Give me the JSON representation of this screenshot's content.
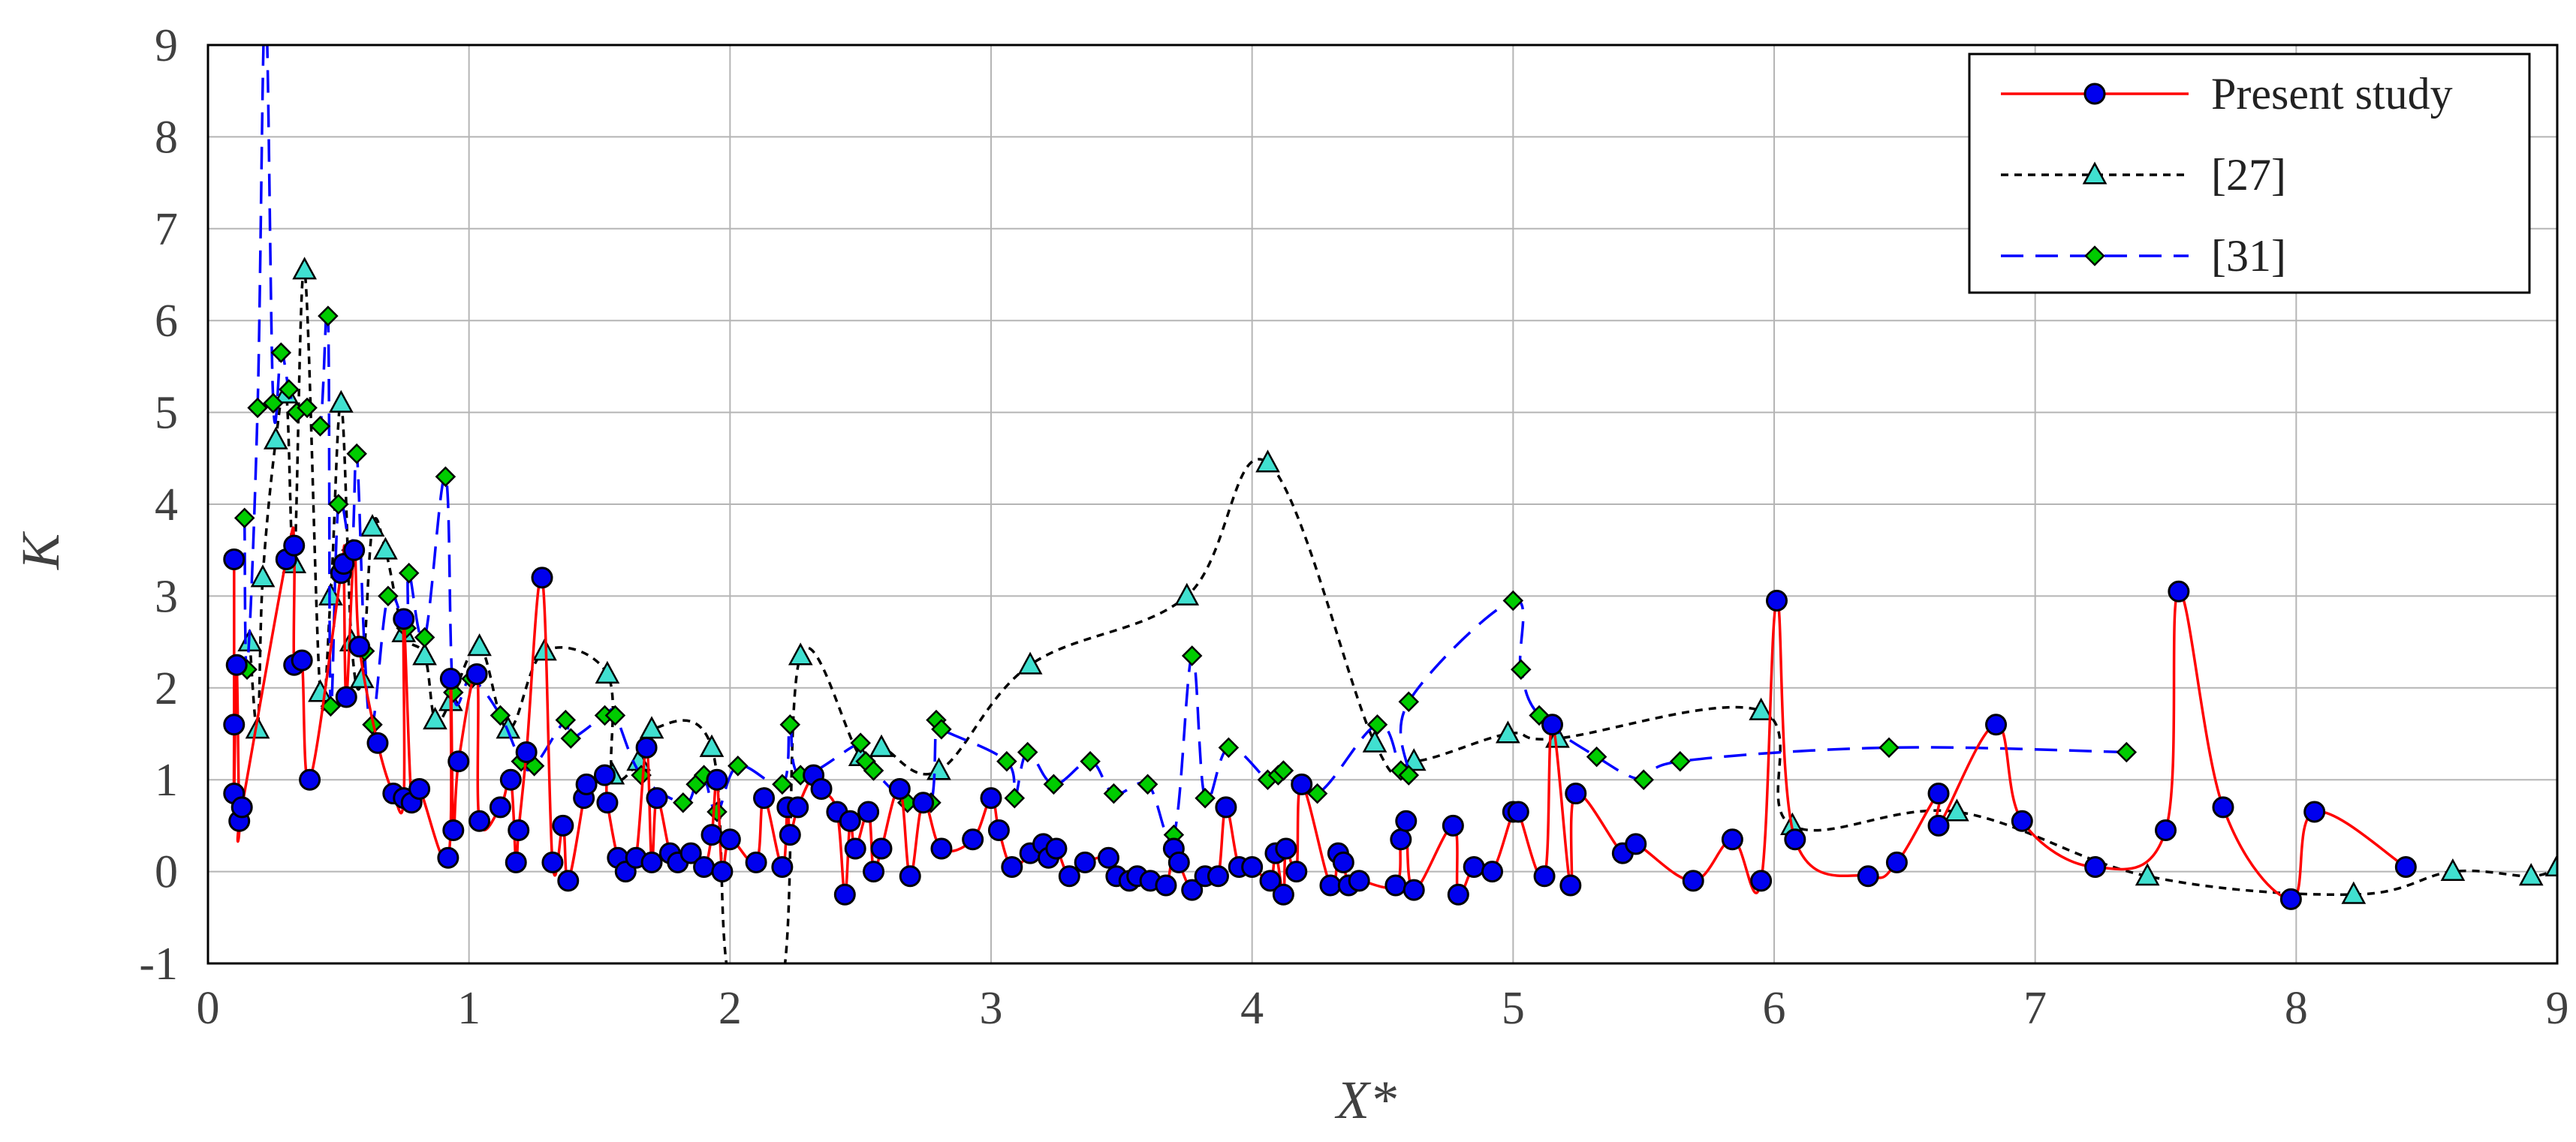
{
  "chart_data": {
    "type": "line",
    "xlabel": "X*",
    "ylabel": "K",
    "xlim": [
      0,
      9
    ],
    "ylim": [
      -1,
      9
    ],
    "xticks": [
      "0",
      "1",
      "2",
      "3",
      "4",
      "5",
      "6",
      "7",
      "8",
      "9"
    ],
    "yticks": [
      "-1",
      "0",
      "1",
      "2",
      "3",
      "4",
      "5",
      "6",
      "7",
      "8",
      "9"
    ],
    "grid": true,
    "legend_position": "top-right",
    "series": [
      {
        "name": "Present study",
        "color": "#ff0000",
        "line_style": "solid",
        "marker": "circle",
        "marker_fill": "#0000ee",
        "points": [
          [
            0.1,
            3.4
          ],
          [
            0.1,
            1.6
          ],
          [
            0.1,
            0.85
          ],
          [
            0.11,
            2.25
          ],
          [
            0.12,
            0.55
          ],
          [
            0.13,
            0.7
          ],
          [
            0.3,
            3.4
          ],
          [
            0.33,
            3.55
          ],
          [
            0.33,
            2.25
          ],
          [
            0.36,
            2.3
          ],
          [
            0.39,
            1.0
          ],
          [
            0.51,
            3.25
          ],
          [
            0.52,
            3.35
          ],
          [
            0.53,
            1.9
          ],
          [
            0.56,
            3.5
          ],
          [
            0.58,
            2.45
          ],
          [
            0.65,
            1.4
          ],
          [
            0.71,
            0.85
          ],
          [
            0.75,
            0.8
          ],
          [
            0.75,
            2.75
          ],
          [
            0.78,
            0.75
          ],
          [
            0.81,
            0.9
          ],
          [
            0.92,
            0.15
          ],
          [
            0.93,
            2.1
          ],
          [
            0.94,
            0.45
          ],
          [
            0.96,
            1.2
          ],
          [
            1.03,
            2.15
          ],
          [
            1.04,
            0.55
          ],
          [
            1.12,
            0.7
          ],
          [
            1.16,
            1.0
          ],
          [
            1.18,
            0.1
          ],
          [
            1.19,
            0.45
          ],
          [
            1.22,
            1.3
          ],
          [
            1.28,
            3.2
          ],
          [
            1.32,
            0.1
          ],
          [
            1.36,
            0.5
          ],
          [
            1.38,
            -0.1
          ],
          [
            1.44,
            0.8
          ],
          [
            1.45,
            0.95
          ],
          [
            1.52,
            1.05
          ],
          [
            1.53,
            0.75
          ],
          [
            1.57,
            0.15
          ],
          [
            1.6,
            0.0
          ],
          [
            1.64,
            0.15
          ],
          [
            1.68,
            1.35
          ],
          [
            1.7,
            0.1
          ],
          [
            1.72,
            0.8
          ],
          [
            1.77,
            0.2
          ],
          [
            1.8,
            0.1
          ],
          [
            1.85,
            0.2
          ],
          [
            1.9,
            0.05
          ],
          [
            1.93,
            0.4
          ],
          [
            1.95,
            1.0
          ],
          [
            1.97,
            0.0
          ],
          [
            2.0,
            0.35
          ],
          [
            2.1,
            0.1
          ],
          [
            2.13,
            0.8
          ],
          [
            2.2,
            0.05
          ],
          [
            2.22,
            0.7
          ],
          [
            2.23,
            0.4
          ],
          [
            2.26,
            0.7
          ],
          [
            2.32,
            1.05
          ],
          [
            2.35,
            0.9
          ],
          [
            2.41,
            0.65
          ],
          [
            2.44,
            -0.25
          ],
          [
            2.46,
            0.55
          ],
          [
            2.48,
            0.25
          ],
          [
            2.53,
            0.65
          ],
          [
            2.55,
            0.0
          ],
          [
            2.58,
            0.25
          ],
          [
            2.65,
            0.9
          ],
          [
            2.69,
            -0.05
          ],
          [
            2.74,
            0.75
          ],
          [
            2.81,
            0.25
          ],
          [
            2.93,
            0.35
          ],
          [
            3.0,
            0.8
          ],
          [
            3.03,
            0.45
          ],
          [
            3.08,
            0.05
          ],
          [
            3.15,
            0.2
          ],
          [
            3.2,
            0.3
          ],
          [
            3.22,
            0.15
          ],
          [
            3.25,
            0.25
          ],
          [
            3.3,
            -0.05
          ],
          [
            3.36,
            0.1
          ],
          [
            3.45,
            0.15
          ],
          [
            3.48,
            -0.05
          ],
          [
            3.53,
            -0.1
          ],
          [
            3.56,
            -0.05
          ],
          [
            3.61,
            -0.1
          ],
          [
            3.67,
            -0.15
          ],
          [
            3.7,
            0.25
          ],
          [
            3.72,
            0.1
          ],
          [
            3.77,
            -0.2
          ],
          [
            3.82,
            -0.05
          ],
          [
            3.87,
            -0.05
          ],
          [
            3.9,
            0.7
          ],
          [
            3.95,
            0.05
          ],
          [
            4.0,
            0.05
          ],
          [
            4.07,
            -0.1
          ],
          [
            4.09,
            0.2
          ],
          [
            4.12,
            -0.25
          ],
          [
            4.13,
            0.25
          ],
          [
            4.17,
            0.0
          ],
          [
            4.19,
            0.95
          ],
          [
            4.3,
            -0.15
          ],
          [
            4.33,
            0.2
          ],
          [
            4.35,
            0.1
          ],
          [
            4.37,
            -0.15
          ],
          [
            4.41,
            -0.1
          ],
          [
            4.55,
            -0.15
          ],
          [
            4.57,
            0.35
          ],
          [
            4.59,
            0.55
          ],
          [
            4.62,
            -0.2
          ],
          [
            4.77,
            0.5
          ],
          [
            4.79,
            -0.25
          ],
          [
            4.85,
            0.05
          ],
          [
            4.92,
            0.0
          ],
          [
            5.0,
            0.65
          ],
          [
            5.02,
            0.65
          ],
          [
            5.12,
            -0.05
          ],
          [
            5.15,
            1.6
          ],
          [
            5.22,
            -0.15
          ],
          [
            5.24,
            0.85
          ],
          [
            5.42,
            0.2
          ],
          [
            5.47,
            0.3
          ],
          [
            5.69,
            -0.1
          ],
          [
            5.84,
            0.35
          ],
          [
            5.95,
            -0.1
          ],
          [
            6.01,
            2.95
          ],
          [
            6.08,
            0.35
          ],
          [
            6.36,
            -0.05
          ],
          [
            6.47,
            0.1
          ],
          [
            6.63,
            0.85
          ],
          [
            6.63,
            0.5
          ],
          [
            6.85,
            1.6
          ],
          [
            6.95,
            0.55
          ],
          [
            7.23,
            0.05
          ],
          [
            7.5,
            0.45
          ],
          [
            7.55,
            3.05
          ],
          [
            7.72,
            0.7
          ],
          [
            7.98,
            -0.3
          ],
          [
            8.07,
            0.65
          ],
          [
            8.42,
            0.05
          ]
        ]
      },
      {
        "name": "[27]",
        "color": "#000000",
        "line_style": "dotted",
        "marker": "triangle",
        "marker_fill": "#40e0d0",
        "points": [
          [
            0.16,
            2.5
          ],
          [
            0.19,
            1.55
          ],
          [
            0.21,
            3.2
          ],
          [
            0.26,
            4.7
          ],
          [
            0.3,
            5.2
          ],
          [
            0.33,
            3.35
          ],
          [
            0.37,
            6.55
          ],
          [
            0.43,
            1.95
          ],
          [
            0.47,
            3.0
          ],
          [
            0.51,
            5.1
          ],
          [
            0.55,
            2.5
          ],
          [
            0.59,
            2.1
          ],
          [
            0.63,
            3.75
          ],
          [
            0.68,
            3.5
          ],
          [
            0.75,
            2.6
          ],
          [
            0.83,
            2.35
          ],
          [
            0.87,
            1.65
          ],
          [
            0.93,
            1.85
          ],
          [
            1.04,
            2.45
          ],
          [
            1.15,
            1.55
          ],
          [
            1.29,
            2.4
          ],
          [
            1.53,
            2.15
          ],
          [
            1.55,
            1.05
          ],
          [
            1.65,
            1.2
          ],
          [
            1.7,
            1.55
          ],
          [
            1.93,
            1.35
          ],
          [
            2.0,
            -1.2
          ],
          [
            2.2,
            -1.2
          ],
          [
            2.27,
            2.35
          ],
          [
            2.5,
            1.25
          ],
          [
            2.58,
            1.35
          ],
          [
            2.8,
            1.1
          ],
          [
            3.15,
            2.25
          ],
          [
            3.75,
            3.0
          ],
          [
            4.06,
            4.45
          ],
          [
            4.47,
            1.4
          ],
          [
            4.62,
            1.2
          ],
          [
            4.98,
            1.5
          ],
          [
            5.17,
            1.45
          ],
          [
            5.95,
            1.75
          ],
          [
            6.07,
            0.5
          ],
          [
            6.7,
            0.65
          ],
          [
            7.43,
            -0.05
          ],
          [
            8.22,
            -0.25
          ],
          [
            8.6,
            0.0
          ],
          [
            8.9,
            -0.05
          ],
          [
            9.0,
            0.05
          ]
        ]
      },
      {
        "name": "[31]",
        "color": "#0000ff",
        "line_style": "dashed",
        "marker": "diamond",
        "marker_fill": "#00cc00",
        "points": [
          [
            0.14,
            3.85
          ],
          [
            0.15,
            2.2
          ],
          [
            0.19,
            5.05
          ],
          [
            0.22,
            9.5
          ],
          [
            0.25,
            5.1
          ],
          [
            0.28,
            5.65
          ],
          [
            0.31,
            5.25
          ],
          [
            0.34,
            5.0
          ],
          [
            0.38,
            5.05
          ],
          [
            0.43,
            4.85
          ],
          [
            0.46,
            6.05
          ],
          [
            0.47,
            1.8
          ],
          [
            0.5,
            4.0
          ],
          [
            0.55,
            3.5
          ],
          [
            0.57,
            4.55
          ],
          [
            0.6,
            2.4
          ],
          [
            0.63,
            1.6
          ],
          [
            0.69,
            3.0
          ],
          [
            0.76,
            2.65
          ],
          [
            0.77,
            3.25
          ],
          [
            0.83,
            2.55
          ],
          [
            0.91,
            4.3
          ],
          [
            0.94,
            1.95
          ],
          [
            1.01,
            2.1
          ],
          [
            1.12,
            1.7
          ],
          [
            1.2,
            1.2
          ],
          [
            1.25,
            1.15
          ],
          [
            1.37,
            1.65
          ],
          [
            1.39,
            1.45
          ],
          [
            1.52,
            1.7
          ],
          [
            1.56,
            1.7
          ],
          [
            1.66,
            1.05
          ],
          [
            1.82,
            0.75
          ],
          [
            1.87,
            0.95
          ],
          [
            1.9,
            1.05
          ],
          [
            1.95,
            0.65
          ],
          [
            2.03,
            1.15
          ],
          [
            2.2,
            0.95
          ],
          [
            2.23,
            1.6
          ],
          [
            2.27,
            1.05
          ],
          [
            2.5,
            1.4
          ],
          [
            2.52,
            1.2
          ],
          [
            2.55,
            1.1
          ],
          [
            2.68,
            0.75
          ],
          [
            2.77,
            0.75
          ],
          [
            2.79,
            1.65
          ],
          [
            2.81,
            1.55
          ],
          [
            3.06,
            1.2
          ],
          [
            3.09,
            0.8
          ],
          [
            3.14,
            1.3
          ],
          [
            3.24,
            0.95
          ],
          [
            3.38,
            1.2
          ],
          [
            3.47,
            0.85
          ],
          [
            3.6,
            0.95
          ],
          [
            3.7,
            0.4
          ],
          [
            3.77,
            2.35
          ],
          [
            3.82,
            0.8
          ],
          [
            3.91,
            1.35
          ],
          [
            4.06,
            1.0
          ],
          [
            4.1,
            1.05
          ],
          [
            4.12,
            1.1
          ],
          [
            4.25,
            0.85
          ],
          [
            4.48,
            1.6
          ],
          [
            4.57,
            1.1
          ],
          [
            4.6,
            1.05
          ],
          [
            4.6,
            1.85
          ],
          [
            5.0,
            2.95
          ],
          [
            5.03,
            2.2
          ],
          [
            5.1,
            1.7
          ],
          [
            5.32,
            1.25
          ],
          [
            5.5,
            1.0
          ],
          [
            5.64,
            1.2
          ],
          [
            6.44,
            1.35
          ],
          [
            7.35,
            1.3
          ]
        ]
      }
    ]
  }
}
